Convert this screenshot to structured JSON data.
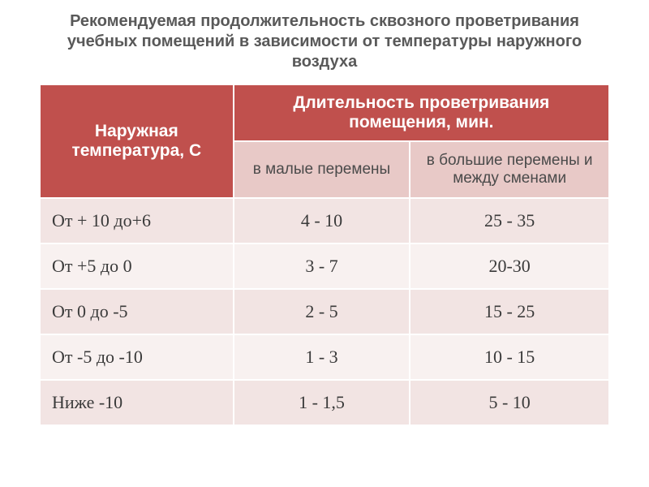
{
  "title": "Рекомендуемая продолжительность сквозного проветривания учебных помещений в зависимости от температуры наружного воздуха",
  "table": {
    "header_col0": "Наружная температура, С",
    "header_span": "Длительность проветривания помещения, мин.",
    "sub_col1": "в малые перемены",
    "sub_col2": "в большие перемены и между сменами",
    "rows": [
      {
        "temp": "От + 10 до+6",
        "small": "4 - 10",
        "big": "25 - 35"
      },
      {
        "temp": "От +5 до 0",
        "small": "3 - 7",
        "big": "20-30"
      },
      {
        "temp": "От 0 до -5",
        "small": "2 - 5",
        "big": "15 - 25"
      },
      {
        "temp": "От -5 до -10",
        "small": "1 - 3",
        "big": "10 - 15"
      },
      {
        "temp": "Ниже -10",
        "small": "1 - 1,5",
        "big": "5 - 10"
      }
    ],
    "colors": {
      "header_bg": "#c0504d",
      "subheader_bg": "#e8c9c7",
      "row_alt_a": "#f2e4e3",
      "row_alt_b": "#f8f1f0",
      "border": "#ffffff",
      "title_text": "#595959"
    },
    "column_widths_pct": [
      34,
      31,
      35
    ]
  }
}
